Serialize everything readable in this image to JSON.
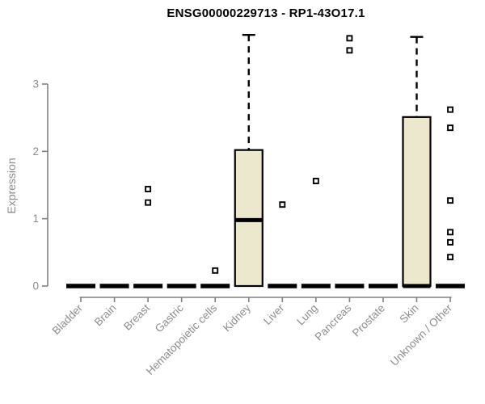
{
  "title": "ENSG00000229713 - RP1-43O17.1",
  "colors": {
    "box_fill": "#ece8ce",
    "box_border": "#000000",
    "median": "#000000",
    "whisker": "#000000",
    "outlier": "#000000",
    "axis": "#808080",
    "tick_label": "#8c8c8c",
    "title": "#000000",
    "background": "#ffffff"
  },
  "chart_data": {
    "type": "box",
    "title": "ENSG00000229713 - RP1-43O17.1",
    "xlabel": "",
    "ylabel": "Expression",
    "yticks": [
      0,
      1,
      2,
      3
    ],
    "ylim": [
      0,
      3.85
    ],
    "grid": false,
    "legend": "none",
    "categories": [
      "Bladder",
      "Brain",
      "Breast",
      "Gastric",
      "Hematopoietic cells",
      "Kidney",
      "Liver",
      "Lung",
      "Pancreas",
      "Prostate",
      "Skin",
      "Unknown / Other"
    ],
    "boxes": [
      {
        "category": "Bladder",
        "q1": 0,
        "median": 0,
        "q3": 0,
        "whisker_low": 0,
        "whisker_high": 0,
        "outliers": []
      },
      {
        "category": "Brain",
        "q1": 0,
        "median": 0,
        "q3": 0,
        "whisker_low": 0,
        "whisker_high": 0,
        "outliers": []
      },
      {
        "category": "Breast",
        "q1": 0,
        "median": 0,
        "q3": 0,
        "whisker_low": 0,
        "whisker_high": 0,
        "outliers": [
          1.44,
          1.24
        ]
      },
      {
        "category": "Gastric",
        "q1": 0,
        "median": 0,
        "q3": 0,
        "whisker_low": 0,
        "whisker_high": 0,
        "outliers": []
      },
      {
        "category": "Hematopoietic cells",
        "q1": 0,
        "median": 0,
        "q3": 0,
        "whisker_low": 0,
        "whisker_high": 0,
        "outliers": [
          0.23
        ]
      },
      {
        "category": "Kidney",
        "q1": 0,
        "median": 0.98,
        "q3": 2.02,
        "whisker_low": 0,
        "whisker_high": 3.73,
        "outliers": []
      },
      {
        "category": "Liver",
        "q1": 0,
        "median": 0,
        "q3": 0,
        "whisker_low": 0,
        "whisker_high": 0,
        "outliers": [
          1.21
        ]
      },
      {
        "category": "Lung",
        "q1": 0,
        "median": 0,
        "q3": 0,
        "whisker_low": 0,
        "whisker_high": 0,
        "outliers": [
          1.56
        ]
      },
      {
        "category": "Pancreas",
        "q1": 0,
        "median": 0,
        "q3": 0,
        "whisker_low": 0,
        "whisker_high": 0,
        "outliers": [
          3.68,
          3.5
        ]
      },
      {
        "category": "Prostate",
        "q1": 0,
        "median": 0,
        "q3": 0,
        "whisker_low": 0,
        "whisker_high": 0,
        "outliers": []
      },
      {
        "category": "Skin",
        "q1": 0,
        "median": 0,
        "q3": 2.51,
        "whisker_low": 0,
        "whisker_high": 3.7,
        "outliers": []
      },
      {
        "category": "Unknown / Other",
        "q1": 0,
        "median": 0,
        "q3": 0,
        "whisker_low": 0,
        "whisker_high": 0,
        "outliers": [
          2.62,
          2.35,
          1.27,
          0.8,
          0.65,
          0.43
        ]
      }
    ]
  }
}
